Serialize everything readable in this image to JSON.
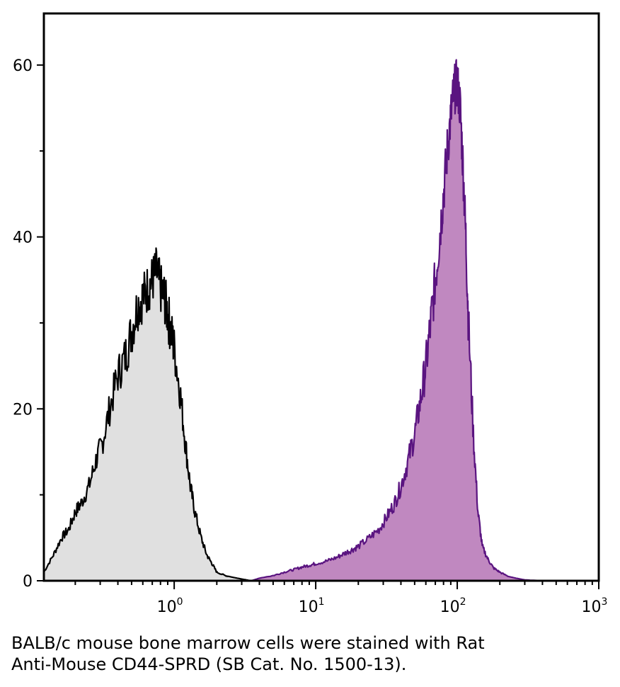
{
  "caption": {
    "line1": "BALB/c mouse bone marrow cells were stained with Rat",
    "line2": "Anti-Mouse CD44-SPRD (SB Cat. No. 1500-13)."
  },
  "chart_data": {
    "type": "area",
    "title": "",
    "xlabel": "",
    "ylabel": "",
    "x_scale": "log",
    "xlim": [
      0.12,
      1000
    ],
    "ylim": [
      0,
      66
    ],
    "x_ticks": [
      {
        "value": 1,
        "base": "10",
        "exp": "0"
      },
      {
        "value": 10,
        "base": "10",
        "exp": "1"
      },
      {
        "value": 100,
        "base": "10",
        "exp": "2"
      },
      {
        "value": 1000,
        "base": "10",
        "exp": "3"
      }
    ],
    "y_ticks": [
      "0",
      "20",
      "40",
      "60"
    ],
    "y_minor": [
      10,
      30,
      50
    ],
    "grid": false,
    "legend": "none",
    "series": [
      {
        "fill": "#e0e0e0",
        "stroke": "#000000",
        "x": [
          0.12,
          0.14,
          0.16,
          0.18,
          0.2,
          0.22,
          0.25,
          0.28,
          0.31,
          0.35,
          0.4,
          0.45,
          0.5,
          0.55,
          0.6,
          0.65,
          0.7,
          0.75,
          0.8,
          0.85,
          0.9,
          0.95,
          1.0,
          1.1,
          1.2,
          1.3,
          1.4,
          1.55,
          1.7,
          1.85,
          2.0,
          2.3,
          2.6,
          3.0,
          3.5
        ],
        "y": [
          1,
          3,
          5,
          6,
          8,
          9,
          11,
          14,
          16,
          20,
          24,
          26,
          29,
          32,
          33,
          34,
          35,
          36,
          34,
          33,
          31,
          29,
          27,
          22,
          16,
          11,
          8,
          5,
          3,
          2,
          1,
          0.6,
          0.4,
          0.2,
          0
        ]
      },
      {
        "fill": "#c088c0",
        "stroke": "#5a1480",
        "x": [
          3.5,
          4,
          5,
          6,
          7,
          8,
          9,
          10,
          12,
          14,
          16,
          18,
          20,
          24,
          28,
          32,
          36,
          40,
          45,
          50,
          55,
          60,
          65,
          70,
          75,
          80,
          85,
          90,
          95,
          100,
          105,
          110,
          115,
          120,
          130,
          140,
          150,
          165,
          180,
          200,
          230,
          260,
          300,
          400,
          600,
          900
        ],
        "y": [
          0,
          0.3,
          0.6,
          1,
          1.3,
          1.6,
          1.8,
          2,
          2.3,
          2.7,
          3.2,
          3.6,
          4,
          5,
          6,
          7.5,
          9,
          11,
          14,
          17,
          21,
          25,
          30,
          35,
          40,
          45,
          50,
          54,
          57,
          58,
          55,
          48,
          40,
          30,
          17,
          8,
          4,
          2.5,
          1.5,
          1,
          0.5,
          0.3,
          0.1,
          0,
          0,
          0
        ]
      }
    ]
  }
}
